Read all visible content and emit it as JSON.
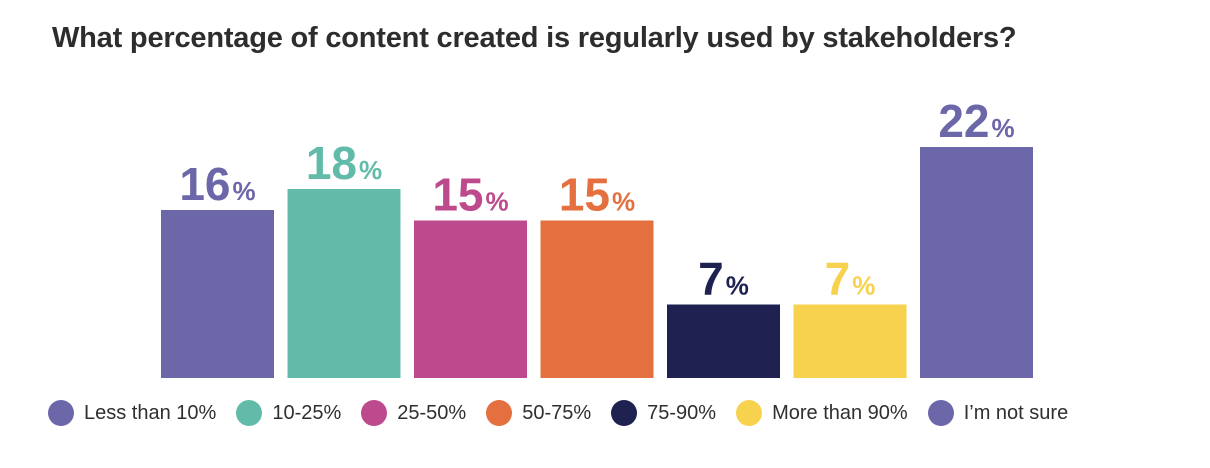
{
  "chart_data": {
    "type": "bar",
    "title": "What percentage of content created is regularly used by stakeholders?",
    "categories": [
      "Less than 10%",
      "10-25%",
      "25-50%",
      "50-75%",
      "75-90%",
      "More than 90%",
      "I’m not sure"
    ],
    "values": [
      16,
      18,
      15,
      15,
      7,
      7,
      22
    ],
    "value_suffix": "%",
    "colors": [
      "#6b67a8",
      "#62bba9",
      "#bd4a8c",
      "#e3703e",
      "#1f2251",
      "#f6d24f",
      "#6b67a8"
    ],
    "legend_position": "bottom",
    "grid": false,
    "xlabel": "",
    "ylabel": "",
    "ylim": [
      0,
      25
    ]
  }
}
